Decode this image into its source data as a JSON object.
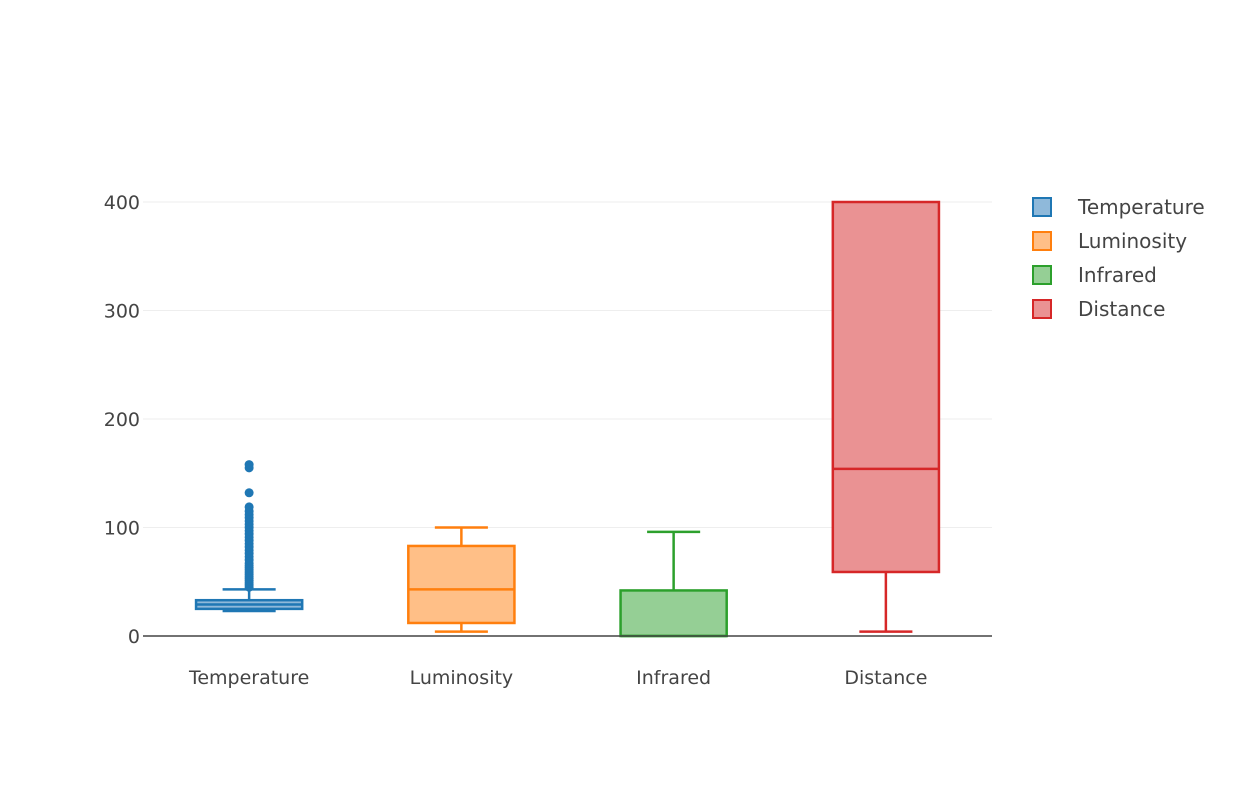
{
  "chart_data": {
    "type": "box",
    "categories": [
      "Temperature",
      "Luminosity",
      "Infrared",
      "Distance"
    ],
    "ylim": [
      0,
      400
    ],
    "y_ticks": [
      "0",
      "100",
      "200",
      "300",
      "400"
    ],
    "grid": true,
    "legend_position": "right",
    "series": [
      {
        "name": "Temperature",
        "color": "#1f77b4",
        "fill": "#8fb9da",
        "q1": 25,
        "median": 29,
        "q3": 33,
        "lowerfence": 23,
        "upperfence": 43,
        "outliers": [
          45,
          47,
          49,
          51,
          53,
          55,
          57,
          59,
          61,
          63,
          65,
          67,
          70,
          73,
          76,
          79,
          82,
          85,
          88,
          91,
          94,
          97,
          100,
          103,
          106,
          109,
          112,
          115,
          119,
          132,
          155,
          158
        ]
      },
      {
        "name": "Luminosity",
        "color": "#ff7f0e",
        "fill": "#ffbf87",
        "q1": 12,
        "median": 43,
        "q3": 83,
        "lowerfence": 4,
        "upperfence": 100,
        "outliers": []
      },
      {
        "name": "Infrared",
        "color": "#2ca02c",
        "fill": "#95cf95",
        "q1": 0,
        "median": 0,
        "q3": 42,
        "lowerfence": 0,
        "upperfence": 96,
        "outliers": []
      },
      {
        "name": "Distance",
        "color": "#d62728",
        "fill": "#ea9293",
        "q1": 59,
        "median": 154,
        "q3": 400,
        "lowerfence": 4,
        "upperfence": 400,
        "outliers": []
      }
    ]
  }
}
